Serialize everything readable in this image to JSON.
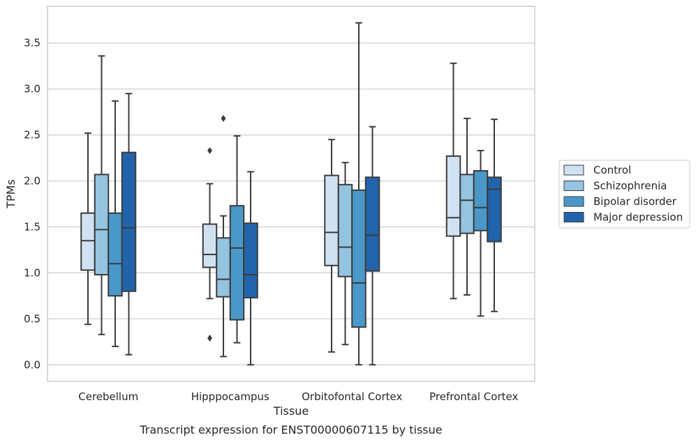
{
  "chart_data": {
    "type": "box",
    "xlabel": "Tissue",
    "ylabel": "TPMs",
    "caption": "Transcript expression for ENST00000607115 by tissue",
    "ylim": [
      -0.18,
      3.9
    ],
    "yticks": [
      "0.0",
      "0.5",
      "1.0",
      "1.5",
      "2.0",
      "2.5",
      "3.0",
      "3.5"
    ],
    "grid": "horizontal",
    "legend_position": "right",
    "categories": [
      "Cerebellum",
      "Hipppocampus",
      "Orbitofontal Cortex",
      "Prefrontal Cortex"
    ],
    "series": [
      {
        "name": "Control",
        "color": "#d0e1f2",
        "boxes": [
          {
            "whislo": 0.44,
            "q1": 1.03,
            "med": 1.35,
            "q3": 1.65,
            "whishi": 2.52,
            "fliers": []
          },
          {
            "whislo": 0.72,
            "q1": 1.06,
            "med": 1.2,
            "q3": 1.53,
            "whishi": 1.97,
            "fliers": [
              2.33,
              0.29
            ]
          },
          {
            "whislo": 0.14,
            "q1": 1.08,
            "med": 1.44,
            "q3": 2.06,
            "whishi": 2.45,
            "fliers": []
          },
          {
            "whislo": 0.72,
            "q1": 1.4,
            "med": 1.6,
            "q3": 2.27,
            "whishi": 3.28,
            "fliers": []
          }
        ]
      },
      {
        "name": "Schizophrenia",
        "color": "#94c4df",
        "boxes": [
          {
            "whislo": 0.33,
            "q1": 0.98,
            "med": 1.47,
            "q3": 2.07,
            "whishi": 3.36,
            "fliers": []
          },
          {
            "whislo": 0.09,
            "q1": 0.74,
            "med": 0.93,
            "q3": 1.38,
            "whishi": 1.62,
            "fliers": [
              2.68
            ]
          },
          {
            "whislo": 0.22,
            "q1": 0.96,
            "med": 1.28,
            "q3": 1.96,
            "whishi": 2.2,
            "fliers": []
          },
          {
            "whislo": 0.76,
            "q1": 1.43,
            "med": 1.79,
            "q3": 2.07,
            "whishi": 2.68,
            "fliers": []
          }
        ]
      },
      {
        "name": "Bipolar disorder",
        "color": "#4a98c9",
        "boxes": [
          {
            "whislo": 0.2,
            "q1": 0.75,
            "med": 1.1,
            "q3": 1.65,
            "whishi": 2.87,
            "fliers": []
          },
          {
            "whislo": 0.24,
            "q1": 0.49,
            "med": 1.27,
            "q3": 1.73,
            "whishi": 2.49,
            "fliers": []
          },
          {
            "whislo": 0.0,
            "q1": 0.41,
            "med": 0.89,
            "q3": 1.9,
            "whishi": 3.72,
            "fliers": []
          },
          {
            "whislo": 0.53,
            "q1": 1.46,
            "med": 1.71,
            "q3": 2.11,
            "whishi": 2.33,
            "fliers": []
          }
        ]
      },
      {
        "name": "Major depression",
        "color": "#2164ab",
        "boxes": [
          {
            "whislo": 0.11,
            "q1": 0.8,
            "med": 1.49,
            "q3": 2.31,
            "whishi": 2.95,
            "fliers": []
          },
          {
            "whislo": 0.0,
            "q1": 0.73,
            "med": 0.98,
            "q3": 1.54,
            "whishi": 2.1,
            "fliers": []
          },
          {
            "whislo": 0.0,
            "q1": 1.02,
            "med": 1.41,
            "q3": 2.04,
            "whishi": 2.59,
            "fliers": []
          },
          {
            "whislo": 0.58,
            "q1": 1.34,
            "med": 1.91,
            "q3": 2.04,
            "whishi": 2.67,
            "fliers": []
          }
        ]
      }
    ]
  }
}
